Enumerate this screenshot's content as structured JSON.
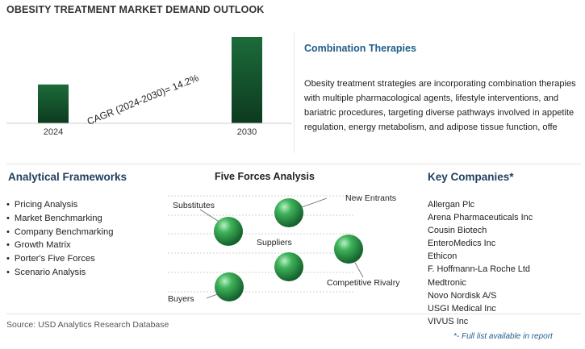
{
  "page_title": "OBESITY TREATMENT MARKET DEMAND OUTLOOK",
  "chart_data": {
    "type": "bar",
    "categories": [
      "2024",
      "2030"
    ],
    "values": [
      1.0,
      2.22
    ],
    "annotation": "CAGR (2024-2030)=  14.2%",
    "colors": {
      "bar_top": "#1c6b3a",
      "bar_bottom": "#0d3a1f"
    }
  },
  "topic": {
    "title": "Combination Therapies",
    "body_lines": [
      "Obesity treatment strategies are incorporating combination therapies",
      "with multiple pharmacological agents, lifestyle interventions, and",
      "bariatric procedures, targeting diverse pathways involved in appetite",
      "regulation, energy metabolism, and adipose tissue function, offe"
    ]
  },
  "frameworks": {
    "title": "Analytical Frameworks",
    "items": [
      "Pricing Analysis",
      "Market Benchmarking",
      "Company Benchmarking",
      "Growth Matrix",
      "Porter's Five Forces",
      "Scenario Analysis"
    ]
  },
  "forces": {
    "title": "Five Forces Analysis",
    "labels": {
      "substitutes": "Substitutes",
      "new_entrants": "New Entrants",
      "suppliers": "Suppliers",
      "competitive_rivalry": "Competitive Rivalry",
      "buyers": "Buyers"
    },
    "sphere_color": "#2e9a4a"
  },
  "companies": {
    "title": "Key Companies*",
    "items": [
      "Allergan Plc",
      "Arena Pharmaceuticals Inc",
      "Cousin Biotech",
      "EnteroMedics Inc",
      "Ethicon",
      "F. Hoffmann-La Roche Ltd",
      "Medtronic",
      "Novo Nordisk A/S",
      "USGI Medical Inc",
      "VIVUS Inc"
    ],
    "note": "*- Full list available in report"
  },
  "source": "Source: USD Analytics Research Database"
}
